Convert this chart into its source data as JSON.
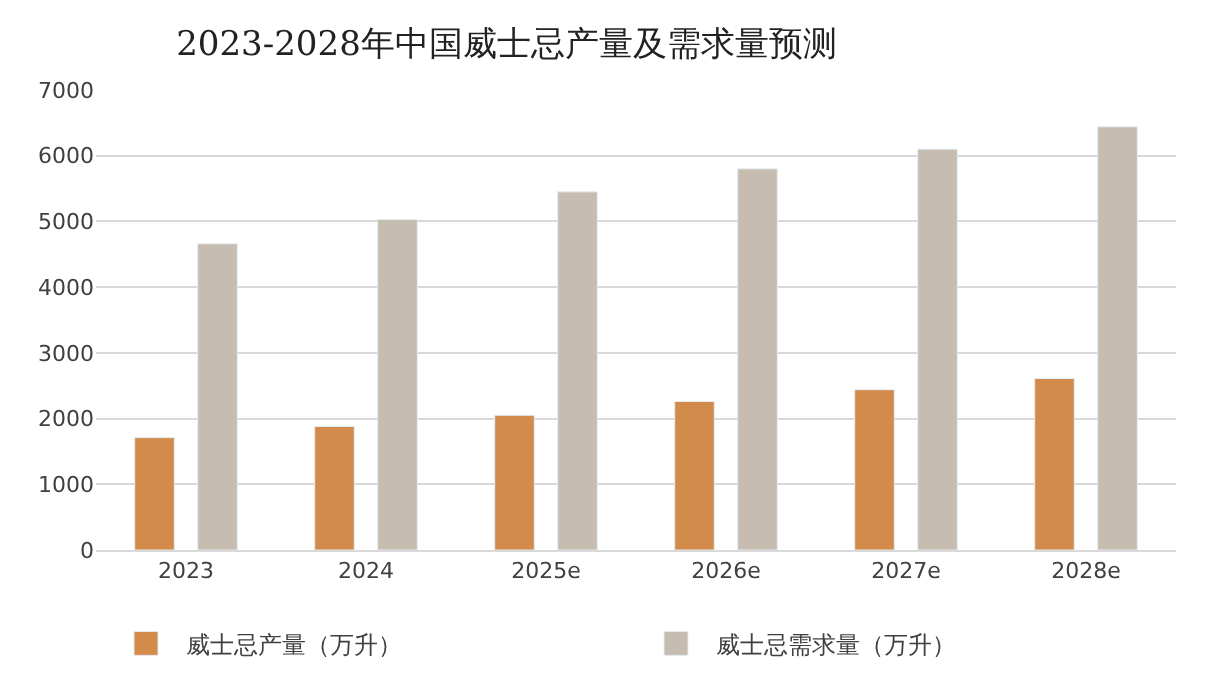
{
  "chart_data": {
    "type": "bar",
    "title": "2023-2028年中国威士忌产量及需求量预测",
    "categories": [
      "2023",
      "2024",
      "2025e",
      "2026e",
      "2027e",
      "2028e"
    ],
    "series": [
      {
        "name": "威士忌产量（万升）",
        "color": "#d38b4c",
        "values": [
          1710,
          1880,
          2050,
          2260,
          2440,
          2610
        ]
      },
      {
        "name": "威士忌需求量（万升）",
        "color": "#c6bcb0",
        "values": [
          4660,
          5030,
          5450,
          5800,
          6100,
          6440
        ]
      }
    ],
    "ylim": [
      0,
      7000
    ],
    "yticks": [
      0,
      1000,
      2000,
      3000,
      4000,
      5000,
      6000,
      7000
    ],
    "grid": "y",
    "legend": "bottom"
  }
}
